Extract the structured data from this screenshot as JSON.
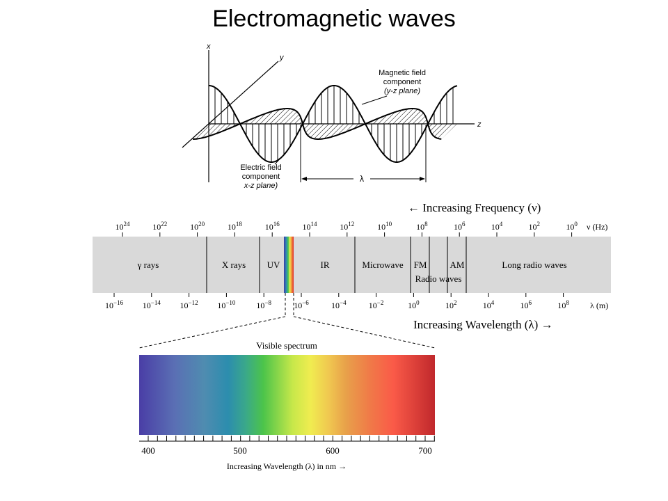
{
  "title": "Electromagnetic waves",
  "wave_diagram": {
    "axis_x": "x",
    "axis_y": "y",
    "axis_z": "z",
    "magnetic_label": [
      "Magnetic field",
      "component",
      "(y-z plane)"
    ],
    "electric_label": [
      "Electric field",
      "component",
      "x-z plane)"
    ],
    "wavelength_symbol": "λ"
  },
  "spectrum": {
    "freq_arrow_label": "← Increasing Frequency (ν)",
    "freq_unit": "ν (Hz)",
    "freq_exponents": [
      "24",
      "22",
      "20",
      "18",
      "16",
      "14",
      "12",
      "10",
      "8",
      "6",
      "4",
      "2",
      "0"
    ],
    "wave_unit": "λ (m)",
    "wave_exponents": [
      "−16",
      "−14",
      "−12",
      "−10",
      "−8",
      "−6",
      "−4",
      "−2",
      "0",
      "2",
      "4",
      "6",
      "8"
    ],
    "tick_base": "10",
    "bands": [
      "γ rays",
      "X rays",
      "UV",
      "IR",
      "Microwave",
      "FM",
      "AM",
      "Long radio waves"
    ],
    "radio_label": "Radio waves",
    "wave_arrow_label": "Increasing Wavelength (λ) →",
    "band_color": "#d9d9d9"
  },
  "visible": {
    "title": "Visible spectrum",
    "ticks": [
      "400",
      "500",
      "600",
      "700"
    ],
    "axis_label": "Increasing Wavelength (λ) in nm →"
  }
}
